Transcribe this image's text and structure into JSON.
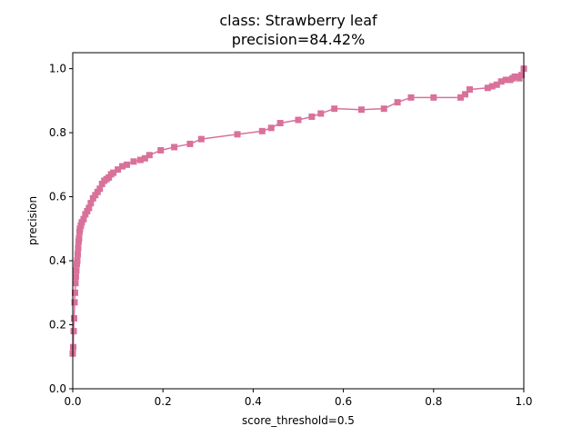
{
  "chart_data": {
    "type": "line",
    "title_line1": "class: Strawberry leaf",
    "title_line2": "precision=84.42%",
    "xlabel": "score_threshold=0.5",
    "ylabel": "precision",
    "xlim": [
      0,
      1
    ],
    "ylim": [
      0,
      1.05
    ],
    "x_ticks": [
      "0.0",
      "0.2",
      "0.4",
      "0.6",
      "0.8",
      "1.0"
    ],
    "y_ticks": [
      "0.0",
      "0.2",
      "0.4",
      "0.6",
      "0.8",
      "1.0"
    ],
    "grid": false,
    "marker": "square",
    "series": [
      {
        "color": "#d9719a",
        "x": [
          0.0,
          0.001,
          0.002,
          0.003,
          0.004,
          0.005,
          0.006,
          0.007,
          0.008,
          0.009,
          0.01,
          0.011,
          0.012,
          0.013,
          0.014,
          0.015,
          0.016,
          0.018,
          0.02,
          0.024,
          0.028,
          0.032,
          0.036,
          0.04,
          0.045,
          0.05,
          0.055,
          0.06,
          0.065,
          0.07,
          0.075,
          0.08,
          0.085,
          0.09,
          0.1,
          0.11,
          0.12,
          0.135,
          0.15,
          0.16,
          0.17,
          0.195,
          0.225,
          0.26,
          0.285,
          0.365,
          0.42,
          0.44,
          0.46,
          0.5,
          0.53,
          0.55,
          0.58,
          0.64,
          0.69,
          0.72,
          0.75,
          0.8,
          0.86,
          0.87,
          0.88,
          0.92,
          0.93,
          0.94,
          0.95,
          0.96,
          0.97,
          0.975,
          0.98,
          0.985,
          0.99,
          0.995,
          1.0
        ],
        "y": [
          0.11,
          0.13,
          0.18,
          0.22,
          0.27,
          0.3,
          0.33,
          0.35,
          0.37,
          0.39,
          0.4,
          0.42,
          0.44,
          0.46,
          0.47,
          0.49,
          0.5,
          0.51,
          0.52,
          0.53,
          0.545,
          0.555,
          0.565,
          0.58,
          0.595,
          0.605,
          0.615,
          0.625,
          0.64,
          0.65,
          0.655,
          0.66,
          0.67,
          0.675,
          0.685,
          0.695,
          0.7,
          0.71,
          0.715,
          0.72,
          0.73,
          0.745,
          0.755,
          0.765,
          0.78,
          0.795,
          0.805,
          0.815,
          0.83,
          0.84,
          0.85,
          0.86,
          0.875,
          0.872,
          0.875,
          0.895,
          0.91,
          0.91,
          0.91,
          0.92,
          0.935,
          0.94,
          0.945,
          0.95,
          0.96,
          0.965,
          0.965,
          0.97,
          0.975,
          0.975,
          0.97,
          0.98,
          1.0
        ]
      }
    ]
  }
}
